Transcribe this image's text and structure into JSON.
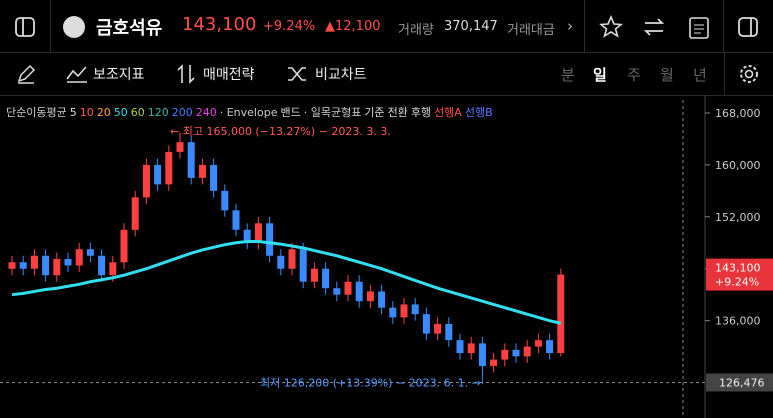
{
  "header": {
    "name": "금호석유",
    "price": "143,100",
    "change_pct": "+9.24%",
    "change": "▲12,100",
    "volume_label": "거래량",
    "volume": "370,147",
    "amount_label": "거래대금"
  },
  "toolbar": [
    "보조지표",
    "매매전략",
    "비교차트"
  ],
  "periods": [
    "분",
    "일",
    "주",
    "월",
    "년"
  ],
  "chart_data": {
    "type": "candlestick",
    "legend": [
      {
        "text": "단순이동평균",
        "color": "#cccccc"
      },
      {
        "text": "5",
        "color": "#dddddd"
      },
      {
        "text": "10",
        "color": "#ff5a5a"
      },
      {
        "text": "20",
        "color": "#ffa030"
      },
      {
        "text": "50",
        "color": "#30e0f0"
      },
      {
        "text": "60",
        "color": "#b0d040"
      },
      {
        "text": "120",
        "color": "#40b0a0"
      },
      {
        "text": "200",
        "color": "#4a7aff"
      },
      {
        "text": "240",
        "color": "#e040e0"
      },
      {
        "text": "· Envelope",
        "color": "#cccccc"
      },
      {
        "text": "밴드",
        "color": "#dddddd"
      },
      {
        "text": "· 일목균형표",
        "color": "#cccccc"
      },
      {
        "text": "기준",
        "color": "#dddddd"
      },
      {
        "text": "전환",
        "color": "#dddddd"
      },
      {
        "text": "후행",
        "color": "#dddddd"
      },
      {
        "text": "선행A",
        "color": "#ff4d4d"
      },
      {
        "text": "선행B",
        "color": "#5a7aff"
      }
    ],
    "ylim": [
      121000,
      170000
    ],
    "yticks": [
      {
        "value": 168000,
        "label": "168,000"
      },
      {
        "value": 160000,
        "label": "160,000"
      },
      {
        "value": 152000,
        "label": "152,000"
      },
      {
        "value": 144000,
        "label": "144,000"
      },
      {
        "value": 136000,
        "label": "136,000"
      }
    ],
    "up_color": "#ff4040",
    "down_color": "#3a8aff",
    "candles": {
      "open": [
        144000,
        145000,
        144000,
        146000,
        143000,
        145500,
        144500,
        147000,
        146000,
        143000,
        145000,
        150000,
        155000,
        160000,
        157000,
        162000,
        163500,
        158000,
        160000,
        156000,
        153000,
        150000,
        148000,
        151000,
        146000,
        144000,
        147000,
        142000,
        144000,
        141000,
        140000,
        142000,
        139000,
        140500,
        138000,
        136500,
        138500,
        137000,
        134000,
        135500,
        133000,
        131000,
        132500,
        129000,
        130000,
        131500,
        130500,
        132000,
        133000,
        131000
      ],
      "high": [
        146000,
        146000,
        147000,
        147000,
        146500,
        146500,
        148000,
        148000,
        147000,
        146000,
        151000,
        156000,
        161000,
        161000,
        163000,
        165000,
        164500,
        161000,
        161000,
        157000,
        154000,
        151000,
        152000,
        152000,
        147000,
        148000,
        148000,
        145000,
        145000,
        142000,
        143000,
        143000,
        141500,
        141500,
        139000,
        139500,
        139500,
        138000,
        136500,
        136500,
        134000,
        133500,
        133500,
        131000,
        132500,
        132500,
        133000,
        134000,
        134000,
        144000
      ],
      "low": [
        143000,
        143000,
        143000,
        142000,
        142000,
        143500,
        143500,
        145000,
        142000,
        142000,
        144000,
        149000,
        154000,
        156000,
        156000,
        161000,
        157000,
        157000,
        155000,
        152000,
        149000,
        147000,
        147000,
        145000,
        143000,
        143000,
        141000,
        141000,
        140000,
        139000,
        139000,
        138000,
        138000,
        137000,
        135500,
        135500,
        136000,
        133000,
        133000,
        132000,
        130000,
        130000,
        126200,
        128000,
        129000,
        129500,
        129500,
        131000,
        130000,
        130500
      ],
      "close": [
        145000,
        144000,
        146000,
        143000,
        145500,
        144500,
        147000,
        146000,
        143000,
        145000,
        150000,
        155000,
        160000,
        157000,
        162000,
        163500,
        158000,
        160000,
        156000,
        153000,
        150000,
        148000,
        151000,
        146000,
        144000,
        147000,
        142000,
        144000,
        141000,
        140000,
        142000,
        139000,
        140500,
        138000,
        136500,
        138500,
        137000,
        134000,
        135500,
        133000,
        131000,
        132500,
        129000,
        130000,
        131500,
        130500,
        132000,
        133000,
        131000,
        143100
      ]
    },
    "ma": {
      "color": "#30e0f0",
      "values": [
        140000,
        140200,
        140500,
        140800,
        141000,
        141300,
        141600,
        142000,
        142300,
        142600,
        143000,
        143500,
        144000,
        144600,
        145200,
        145800,
        146400,
        146900,
        147300,
        147700,
        148000,
        148200,
        148200,
        148000,
        147800,
        147500,
        147200,
        146800,
        146400,
        146000,
        145500,
        145000,
        144500,
        144000,
        143400,
        142800,
        142200,
        141600,
        141000,
        140500,
        140000,
        139500,
        139000,
        138500,
        138000,
        137500,
        137000,
        136500,
        136000,
        135600
      ]
    },
    "current": {
      "value": 143100,
      "label": "143,100",
      "change": "+9.24%",
      "color": "#e8343a"
    },
    "low_line": {
      "value": 126476,
      "label": "126,476"
    },
    "annotations": [
      "← 최고 165,000 (−13.27%) − 2023. 3. 3.",
      "최저 126,200 (+13.39%) − 2023. 6. 1. →"
    ]
  }
}
